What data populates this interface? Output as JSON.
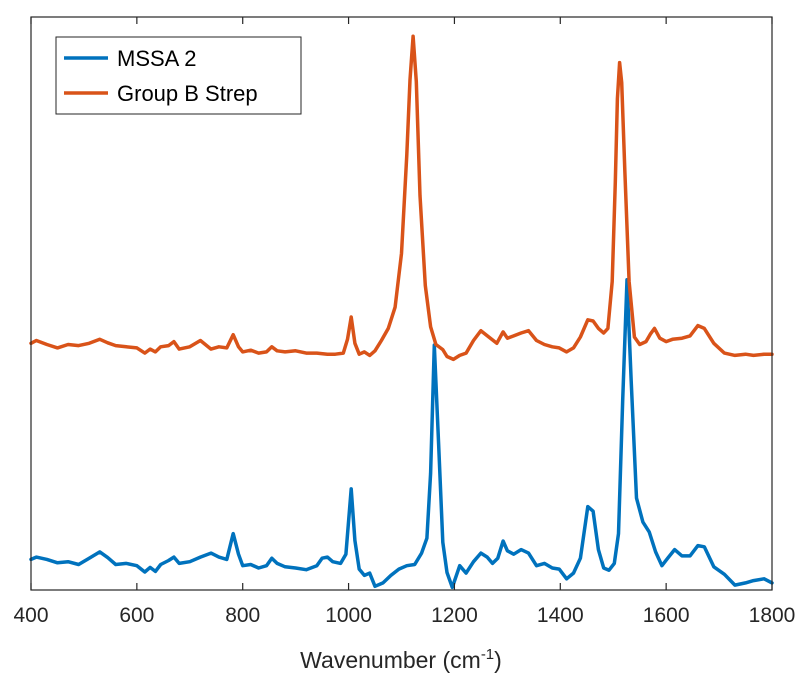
{
  "chart_data": {
    "type": "line",
    "title": "",
    "xlabel": "Wavenumber (cm",
    "xlabel_superscript": "-1",
    "xlabel_suffix": ")",
    "ylabel": "",
    "xlim": [
      400,
      1800
    ],
    "xticks": [
      400,
      600,
      800,
      1000,
      1200,
      1400,
      1600,
      1800
    ],
    "xtick_labels": [
      "400",
      "600",
      "800",
      "1000",
      "1200",
      "1400",
      "1600",
      "1800"
    ],
    "yticks_shown": false,
    "grid": false,
    "legend_position": "top-left",
    "y_units": "arbitrary (offset spectra)",
    "ylim": [
      0,
      1
    ],
    "series": [
      {
        "name": "MSSA 2",
        "color": "#0072BD",
        "points": [
          [
            400,
            0.043
          ],
          [
            410,
            0.047
          ],
          [
            430,
            0.043
          ],
          [
            450,
            0.037
          ],
          [
            470,
            0.039
          ],
          [
            490,
            0.034
          ],
          [
            510,
            0.045
          ],
          [
            530,
            0.056
          ],
          [
            545,
            0.046
          ],
          [
            560,
            0.034
          ],
          [
            580,
            0.036
          ],
          [
            600,
            0.032
          ],
          [
            615,
            0.021
          ],
          [
            625,
            0.029
          ],
          [
            635,
            0.022
          ],
          [
            645,
            0.034
          ],
          [
            660,
            0.041
          ],
          [
            670,
            0.047
          ],
          [
            680,
            0.036
          ],
          [
            700,
            0.039
          ],
          [
            720,
            0.047
          ],
          [
            740,
            0.054
          ],
          [
            755,
            0.047
          ],
          [
            770,
            0.043
          ],
          [
            782,
            0.088
          ],
          [
            792,
            0.052
          ],
          [
            800,
            0.032
          ],
          [
            815,
            0.034
          ],
          [
            830,
            0.028
          ],
          [
            845,
            0.032
          ],
          [
            855,
            0.045
          ],
          [
            865,
            0.036
          ],
          [
            880,
            0.03
          ],
          [
            900,
            0.028
          ],
          [
            920,
            0.025
          ],
          [
            940,
            0.032
          ],
          [
            950,
            0.045
          ],
          [
            960,
            0.047
          ],
          [
            970,
            0.039
          ],
          [
            985,
            0.036
          ],
          [
            995,
            0.052
          ],
          [
            1005,
            0.166
          ],
          [
            1012,
            0.076
          ],
          [
            1020,
            0.026
          ],
          [
            1030,
            0.015
          ],
          [
            1040,
            0.019
          ],
          [
            1050,
            -0.004
          ],
          [
            1065,
            0.002
          ],
          [
            1080,
            0.015
          ],
          [
            1095,
            0.026
          ],
          [
            1110,
            0.032
          ],
          [
            1125,
            0.034
          ],
          [
            1138,
            0.054
          ],
          [
            1148,
            0.08
          ],
          [
            1155,
            0.193
          ],
          [
            1162,
            0.417
          ],
          [
            1170,
            0.245
          ],
          [
            1178,
            0.073
          ],
          [
            1186,
            0.02
          ],
          [
            1196,
            -0.006
          ],
          [
            1210,
            0.032
          ],
          [
            1222,
            0.019
          ],
          [
            1236,
            0.039
          ],
          [
            1250,
            0.054
          ],
          [
            1262,
            0.047
          ],
          [
            1272,
            0.036
          ],
          [
            1282,
            0.045
          ],
          [
            1292,
            0.075
          ],
          [
            1300,
            0.058
          ],
          [
            1312,
            0.052
          ],
          [
            1326,
            0.06
          ],
          [
            1340,
            0.054
          ],
          [
            1355,
            0.032
          ],
          [
            1370,
            0.036
          ],
          [
            1385,
            0.028
          ],
          [
            1398,
            0.026
          ],
          [
            1412,
            0.009
          ],
          [
            1425,
            0.019
          ],
          [
            1438,
            0.045
          ],
          [
            1452,
            0.135
          ],
          [
            1462,
            0.127
          ],
          [
            1472,
            0.06
          ],
          [
            1482,
            0.028
          ],
          [
            1492,
            0.024
          ],
          [
            1502,
            0.036
          ],
          [
            1510,
            0.088
          ],
          [
            1518,
            0.321
          ],
          [
            1526,
            0.531
          ],
          [
            1534,
            0.354
          ],
          [
            1544,
            0.15
          ],
          [
            1556,
            0.108
          ],
          [
            1568,
            0.091
          ],
          [
            1580,
            0.056
          ],
          [
            1592,
            0.032
          ],
          [
            1603,
            0.045
          ],
          [
            1616,
            0.06
          ],
          [
            1630,
            0.049
          ],
          [
            1645,
            0.049
          ],
          [
            1660,
            0.067
          ],
          [
            1672,
            0.065
          ],
          [
            1690,
            0.03
          ],
          [
            1710,
            0.017
          ],
          [
            1730,
            -0.002
          ],
          [
            1750,
            0.002
          ],
          [
            1765,
            0.006
          ],
          [
            1785,
            0.009
          ],
          [
            1800,
            0.002
          ]
        ]
      },
      {
        "name": "Group B Strep",
        "color": "#D95319",
        "points": [
          [
            400,
            0.42
          ],
          [
            410,
            0.425
          ],
          [
            430,
            0.418
          ],
          [
            450,
            0.412
          ],
          [
            470,
            0.418
          ],
          [
            490,
            0.416
          ],
          [
            510,
            0.42
          ],
          [
            530,
            0.427
          ],
          [
            545,
            0.421
          ],
          [
            560,
            0.416
          ],
          [
            580,
            0.414
          ],
          [
            600,
            0.412
          ],
          [
            615,
            0.403
          ],
          [
            625,
            0.41
          ],
          [
            635,
            0.405
          ],
          [
            645,
            0.414
          ],
          [
            660,
            0.416
          ],
          [
            670,
            0.423
          ],
          [
            680,
            0.41
          ],
          [
            700,
            0.414
          ],
          [
            720,
            0.425
          ],
          [
            740,
            0.41
          ],
          [
            755,
            0.414
          ],
          [
            770,
            0.412
          ],
          [
            782,
            0.435
          ],
          [
            792,
            0.414
          ],
          [
            800,
            0.405
          ],
          [
            815,
            0.408
          ],
          [
            830,
            0.403
          ],
          [
            845,
            0.405
          ],
          [
            855,
            0.414
          ],
          [
            865,
            0.407
          ],
          [
            880,
            0.405
          ],
          [
            900,
            0.407
          ],
          [
            920,
            0.403
          ],
          [
            940,
            0.403
          ],
          [
            960,
            0.401
          ],
          [
            975,
            0.401
          ],
          [
            990,
            0.403
          ],
          [
            998,
            0.427
          ],
          [
            1005,
            0.466
          ],
          [
            1012,
            0.42
          ],
          [
            1020,
            0.401
          ],
          [
            1030,
            0.405
          ],
          [
            1040,
            0.399
          ],
          [
            1050,
            0.407
          ],
          [
            1062,
            0.425
          ],
          [
            1075,
            0.446
          ],
          [
            1088,
            0.483
          ],
          [
            1100,
            0.577
          ],
          [
            1110,
            0.749
          ],
          [
            1116,
            0.88
          ],
          [
            1122,
            0.956
          ],
          [
            1128,
            0.877
          ],
          [
            1135,
            0.678
          ],
          [
            1145,
            0.521
          ],
          [
            1155,
            0.449
          ],
          [
            1165,
            0.418
          ],
          [
            1178,
            0.409
          ],
          [
            1186,
            0.397
          ],
          [
            1198,
            0.392
          ],
          [
            1210,
            0.399
          ],
          [
            1222,
            0.403
          ],
          [
            1236,
            0.425
          ],
          [
            1250,
            0.442
          ],
          [
            1265,
            0.431
          ],
          [
            1280,
            0.42
          ],
          [
            1292,
            0.44
          ],
          [
            1300,
            0.429
          ],
          [
            1312,
            0.433
          ],
          [
            1326,
            0.438
          ],
          [
            1340,
            0.442
          ],
          [
            1355,
            0.425
          ],
          [
            1370,
            0.418
          ],
          [
            1385,
            0.414
          ],
          [
            1398,
            0.412
          ],
          [
            1412,
            0.405
          ],
          [
            1425,
            0.412
          ],
          [
            1438,
            0.431
          ],
          [
            1452,
            0.461
          ],
          [
            1462,
            0.459
          ],
          [
            1472,
            0.446
          ],
          [
            1482,
            0.438
          ],
          [
            1490,
            0.446
          ],
          [
            1498,
            0.528
          ],
          [
            1504,
            0.701
          ],
          [
            1508,
            0.847
          ],
          [
            1512,
            0.91
          ],
          [
            1516,
            0.875
          ],
          [
            1522,
            0.718
          ],
          [
            1530,
            0.528
          ],
          [
            1540,
            0.431
          ],
          [
            1550,
            0.418
          ],
          [
            1562,
            0.423
          ],
          [
            1570,
            0.436
          ],
          [
            1578,
            0.446
          ],
          [
            1588,
            0.429
          ],
          [
            1600,
            0.423
          ],
          [
            1612,
            0.427
          ],
          [
            1630,
            0.429
          ],
          [
            1645,
            0.433
          ],
          [
            1660,
            0.451
          ],
          [
            1672,
            0.446
          ],
          [
            1690,
            0.42
          ],
          [
            1710,
            0.403
          ],
          [
            1730,
            0.399
          ],
          [
            1750,
            0.401
          ],
          [
            1765,
            0.399
          ],
          [
            1785,
            0.401
          ],
          [
            1800,
            0.401
          ]
        ]
      }
    ]
  }
}
